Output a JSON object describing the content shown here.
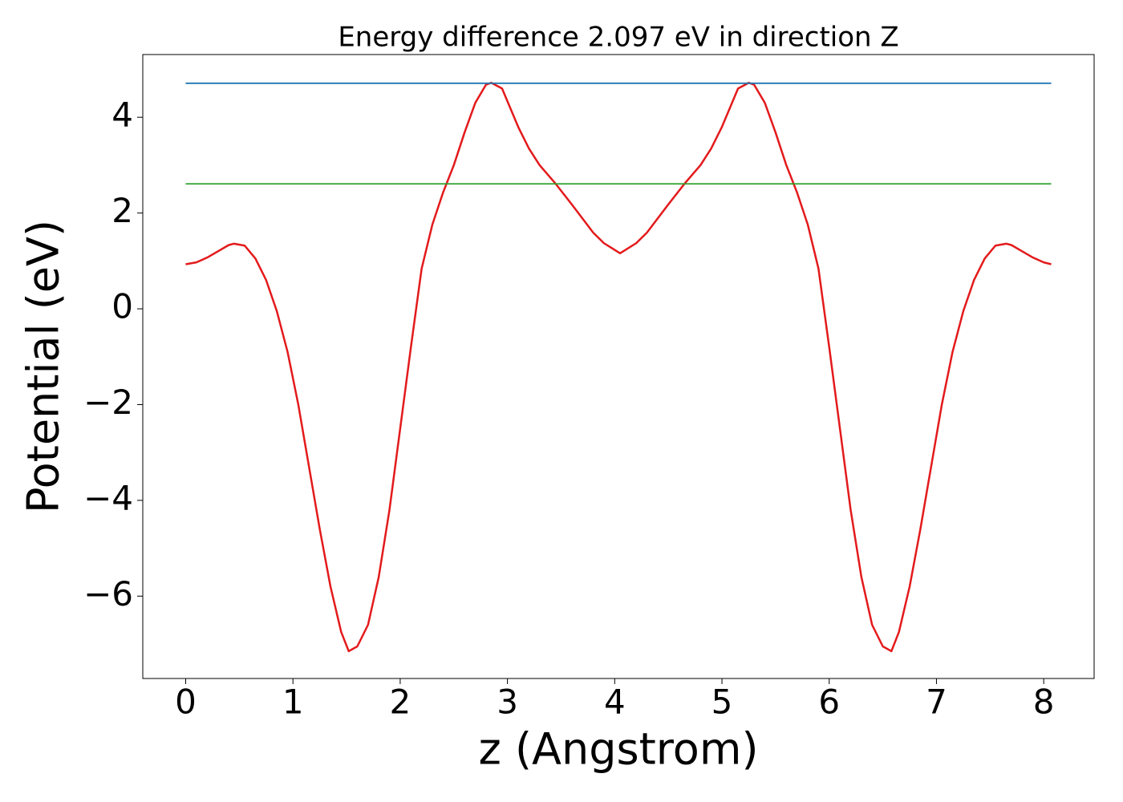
{
  "chart_data": {
    "type": "line",
    "title": "Energy difference 2.097 eV in direction Z",
    "x_label": "z (Angstrom)",
    "y_label": "Potential (eV)",
    "xlim": [
      -0.4,
      8.47
    ],
    "ylim": [
      -7.72,
      5.31
    ],
    "xticks": [
      0,
      1,
      2,
      3,
      4,
      5,
      6,
      7,
      8
    ],
    "yticks": [
      {
        "value": -6,
        "label": "−6"
      },
      {
        "value": -4,
        "label": "−4"
      },
      {
        "value": -2,
        "label": "−2"
      },
      0,
      2,
      4
    ],
    "grid": false,
    "series": [
      {
        "color": "#e31a1c",
        "x": [
          0,
          0.1,
          0.2,
          0.3,
          0.4,
          0.45,
          0.55,
          0.65,
          0.75,
          0.85,
          0.95,
          1.05,
          1.15,
          1.25,
          1.35,
          1.45,
          1.52,
          1.6,
          1.7,
          1.8,
          1.9,
          2.0,
          2.1,
          2.2,
          2.3,
          2.4,
          2.5,
          2.6,
          2.7,
          2.8,
          2.85,
          2.95,
          3.1,
          3.2,
          3.3,
          3.45,
          3.6,
          3.8,
          3.9,
          4.05,
          4.2,
          4.3,
          4.5,
          4.65,
          4.8,
          4.9,
          5.0,
          5.15,
          5.25,
          5.3,
          5.4,
          5.5,
          5.6,
          5.7,
          5.8,
          5.9,
          6.0,
          6.1,
          6.2,
          6.3,
          6.4,
          6.5,
          6.58,
          6.65,
          6.75,
          6.85,
          6.95,
          7.05,
          7.15,
          7.25,
          7.35,
          7.45,
          7.55,
          7.65,
          7.7,
          7.8,
          7.9,
          8.0,
          8.07
        ],
        "values": [
          0.93,
          0.97,
          1.07,
          1.2,
          1.33,
          1.36,
          1.32,
          1.05,
          0.6,
          -0.05,
          -0.9,
          -2.0,
          -3.3,
          -4.6,
          -5.8,
          -6.75,
          -7.15,
          -7.05,
          -6.6,
          -5.6,
          -4.2,
          -2.5,
          -0.8,
          0.84,
          1.76,
          2.43,
          3.0,
          3.68,
          4.3,
          4.68,
          4.72,
          4.6,
          3.8,
          3.35,
          3.0,
          2.61,
          2.18,
          1.59,
          1.37,
          1.16,
          1.37,
          1.59,
          2.18,
          2.61,
          3.0,
          3.35,
          3.8,
          4.6,
          4.72,
          4.68,
          4.3,
          3.68,
          3.0,
          2.43,
          1.76,
          0.84,
          -0.8,
          -2.5,
          -4.2,
          -5.6,
          -6.6,
          -7.05,
          -7.15,
          -6.75,
          -5.8,
          -4.6,
          -3.3,
          -2.0,
          -0.9,
          -0.05,
          0.6,
          1.05,
          1.32,
          1.36,
          1.33,
          1.2,
          1.07,
          0.97,
          0.93
        ]
      },
      {
        "color": "#1f77b4",
        "x": [
          0,
          8.07
        ],
        "values": [
          4.71,
          4.71
        ]
      },
      {
        "color": "#2ca02c",
        "x": [
          0,
          8.07
        ],
        "values": [
          2.61,
          2.61
        ]
      }
    ]
  }
}
